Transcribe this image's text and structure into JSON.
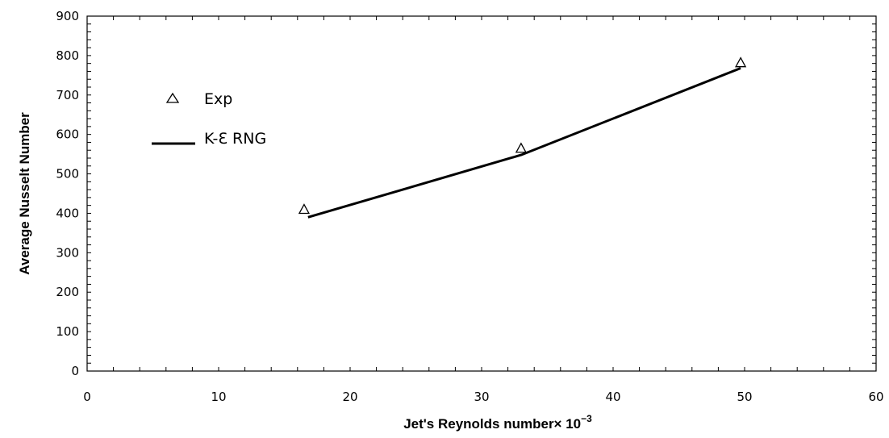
{
  "chart_data": {
    "type": "line",
    "xlabel": "Jet's Reynolds number× 10",
    "xlabel_exponent": "−3",
    "ylabel": "Average Nusselt Number",
    "xlim": [
      0,
      60
    ],
    "ylim": [
      0,
      900
    ],
    "x_ticks": [
      "0",
      "10",
      "20",
      "30",
      "40",
      "50",
      "60"
    ],
    "y_ticks": [
      "0",
      "100",
      "200",
      "300",
      "400",
      "500",
      "600",
      "700",
      "800",
      "900"
    ],
    "grid": false,
    "legend_position": "top-left",
    "series": [
      {
        "name": "Exp",
        "style": "markers",
        "marker": "open-triangle",
        "x": [
          16.5,
          33.0,
          49.7
        ],
        "y": [
          408,
          563,
          780
        ]
      },
      {
        "name": "K-Ɛ RNG",
        "style": "line",
        "x": [
          16.8,
          33.0,
          49.7
        ],
        "y": [
          390,
          548,
          768
        ]
      }
    ],
    "colors": {
      "line": "#000000",
      "marker": "#000000",
      "frame": "#000000"
    }
  }
}
